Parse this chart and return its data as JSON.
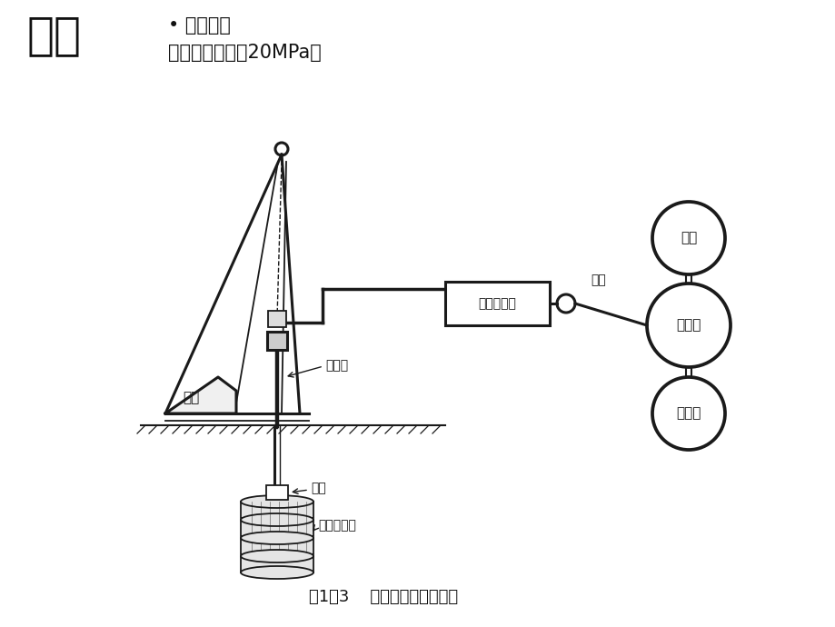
{
  "title_text": "方法",
  "bullet_line1": "• 单管法：",
  "bullet_line2": "浆液高压射流：20MPa。",
  "caption": "图1－3    单管旋喷注浆示意图",
  "label_drilling": "钻机",
  "label_pipe": "注浆管",
  "label_nozzle": "喷头",
  "label_body": "旋喷固结体",
  "label_pump": "高压泥浆泵",
  "label_mixer": "搅拌机",
  "label_tank": "水箱",
  "label_cement": "水泥仓",
  "label_barrel": "浆桶",
  "bg_color": "#ffffff",
  "line_color": "#1a1a1a",
  "text_color": "#111111"
}
